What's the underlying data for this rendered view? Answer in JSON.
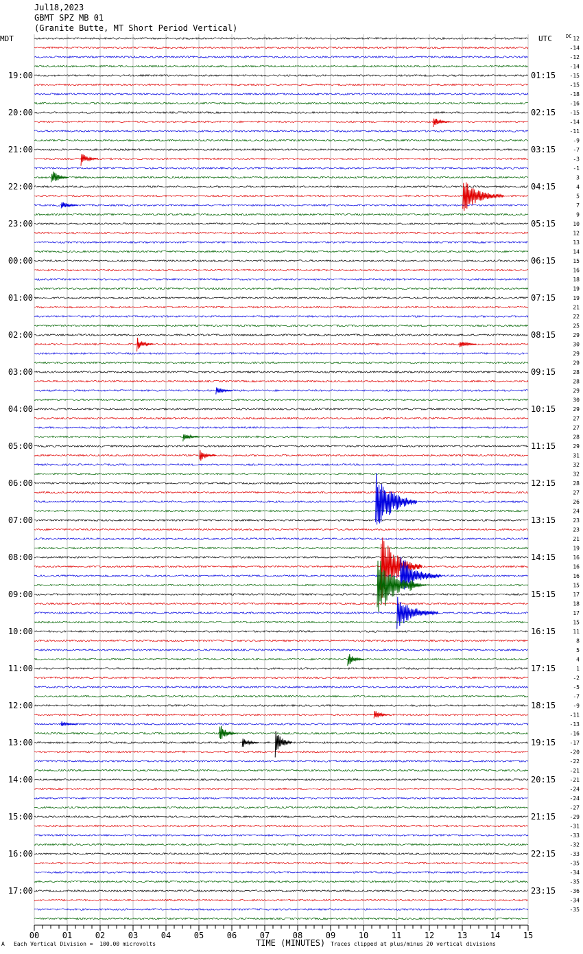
{
  "header": {
    "date": "Jul18,2023",
    "station": "GBMT SPZ MB 01",
    "location": "(Granite Butte, MT Short Period Vertical)"
  },
  "left_zone": "MDT",
  "right_zone": "UTC",
  "dc_label": "DC",
  "footer": {
    "mark": "A",
    "scale_note": "Each Vertical Division =  100.00 microvolts",
    "clip_note": "Traces clipped at plus/minus 20 vertical divisions"
  },
  "trace_colors": [
    "#000000",
    "#e00000",
    "#0000e0",
    "#006400"
  ],
  "chart_data": {
    "type": "line",
    "title": "GBMT SPZ MB 01",
    "xlabel": "TIME (MINUTES)",
    "xlim": [
      0,
      15
    ],
    "x_ticks": [
      "00",
      "01",
      "02",
      "03",
      "04",
      "05",
      "06",
      "07",
      "08",
      "09",
      "10",
      "11",
      "12",
      "13",
      "14",
      "15"
    ],
    "trace_minutes_per_row": 15,
    "row_count": 96,
    "left_hour_labels": [
      "19:00",
      "20:00",
      "21:00",
      "22:00",
      "23:00",
      "00:00",
      "01:00",
      "02:00",
      "03:00",
      "04:00",
      "05:00",
      "06:00",
      "07:00",
      "08:00",
      "09:00",
      "10:00",
      "11:00",
      "12:00",
      "13:00",
      "14:00",
      "15:00",
      "16:00",
      "17:00"
    ],
    "right_hour_labels": [
      "01:15",
      "02:15",
      "03:15",
      "04:15",
      "05:15",
      "06:15",
      "07:15",
      "08:15",
      "09:15",
      "10:15",
      "11:15",
      "12:15",
      "13:15",
      "14:15",
      "15:15",
      "16:15",
      "17:15",
      "18:15",
      "19:15",
      "20:15",
      "21:15",
      "22:15",
      "23:15"
    ],
    "dc_offsets": [
      12,
      -14,
      -12,
      -14,
      -15,
      -15,
      -18,
      -16,
      -15,
      -14,
      -11,
      -9,
      -7,
      -3,
      -1,
      3,
      4,
      5,
      7,
      9,
      10,
      12,
      13,
      14,
      15,
      16,
      18,
      19,
      19,
      21,
      22,
      25,
      29,
      30,
      29,
      29,
      28,
      28,
      29,
      30,
      29,
      27,
      27,
      28,
      29,
      31,
      32,
      32,
      28,
      27,
      26,
      24,
      23,
      23,
      21,
      19,
      16,
      16,
      16,
      15,
      17,
      18,
      17,
      15,
      11,
      8,
      5,
      4,
      1,
      -2,
      -5,
      -7,
      -9,
      -11,
      -13,
      -16,
      -17,
      -20,
      -22,
      -21,
      -21,
      -24,
      -24,
      -27,
      -29,
      -31,
      -33,
      -32,
      -33,
      -35,
      -34,
      -35,
      -36,
      -34,
      -35
    ],
    "events": [
      {
        "row": 9,
        "minute": 12.2,
        "amplitude_div": 3
      },
      {
        "row": 13,
        "minute": 1.5,
        "amplitude_div": 4
      },
      {
        "row": 15,
        "minute": 0.6,
        "amplitude_div": 5
      },
      {
        "row": 17,
        "minute": 13.1,
        "amplitude_div": 10
      },
      {
        "row": 18,
        "minute": 0.9,
        "amplitude_div": 3
      },
      {
        "row": 33,
        "minute": 3.2,
        "amplitude_div": 4
      },
      {
        "row": 33,
        "minute": 13.0,
        "amplitude_div": 3
      },
      {
        "row": 38,
        "minute": 5.6,
        "amplitude_div": 3
      },
      {
        "row": 43,
        "minute": 4.6,
        "amplitude_div": 3
      },
      {
        "row": 45,
        "minute": 5.1,
        "amplitude_div": 4
      },
      {
        "row": 50,
        "minute": 10.45,
        "amplitude_div": 20
      },
      {
        "row": 57,
        "minute": 10.6,
        "amplitude_div": 20
      },
      {
        "row": 58,
        "minute": 11.2,
        "amplitude_div": 12
      },
      {
        "row": 59,
        "minute": 10.5,
        "amplitude_div": 20
      },
      {
        "row": 59,
        "minute": 11.5,
        "amplitude_div": 4
      },
      {
        "row": 62,
        "minute": 11.1,
        "amplitude_div": 10
      },
      {
        "row": 67,
        "minute": 9.6,
        "amplitude_div": 4
      },
      {
        "row": 73,
        "minute": 10.4,
        "amplitude_div": 3
      },
      {
        "row": 74,
        "minute": 0.9,
        "amplitude_div": 2
      },
      {
        "row": 75,
        "minute": 5.7,
        "amplitude_div": 6
      },
      {
        "row": 76,
        "minute": 6.4,
        "amplitude_div": 3
      },
      {
        "row": 76,
        "minute": 7.4,
        "amplitude_div": 8
      }
    ]
  }
}
